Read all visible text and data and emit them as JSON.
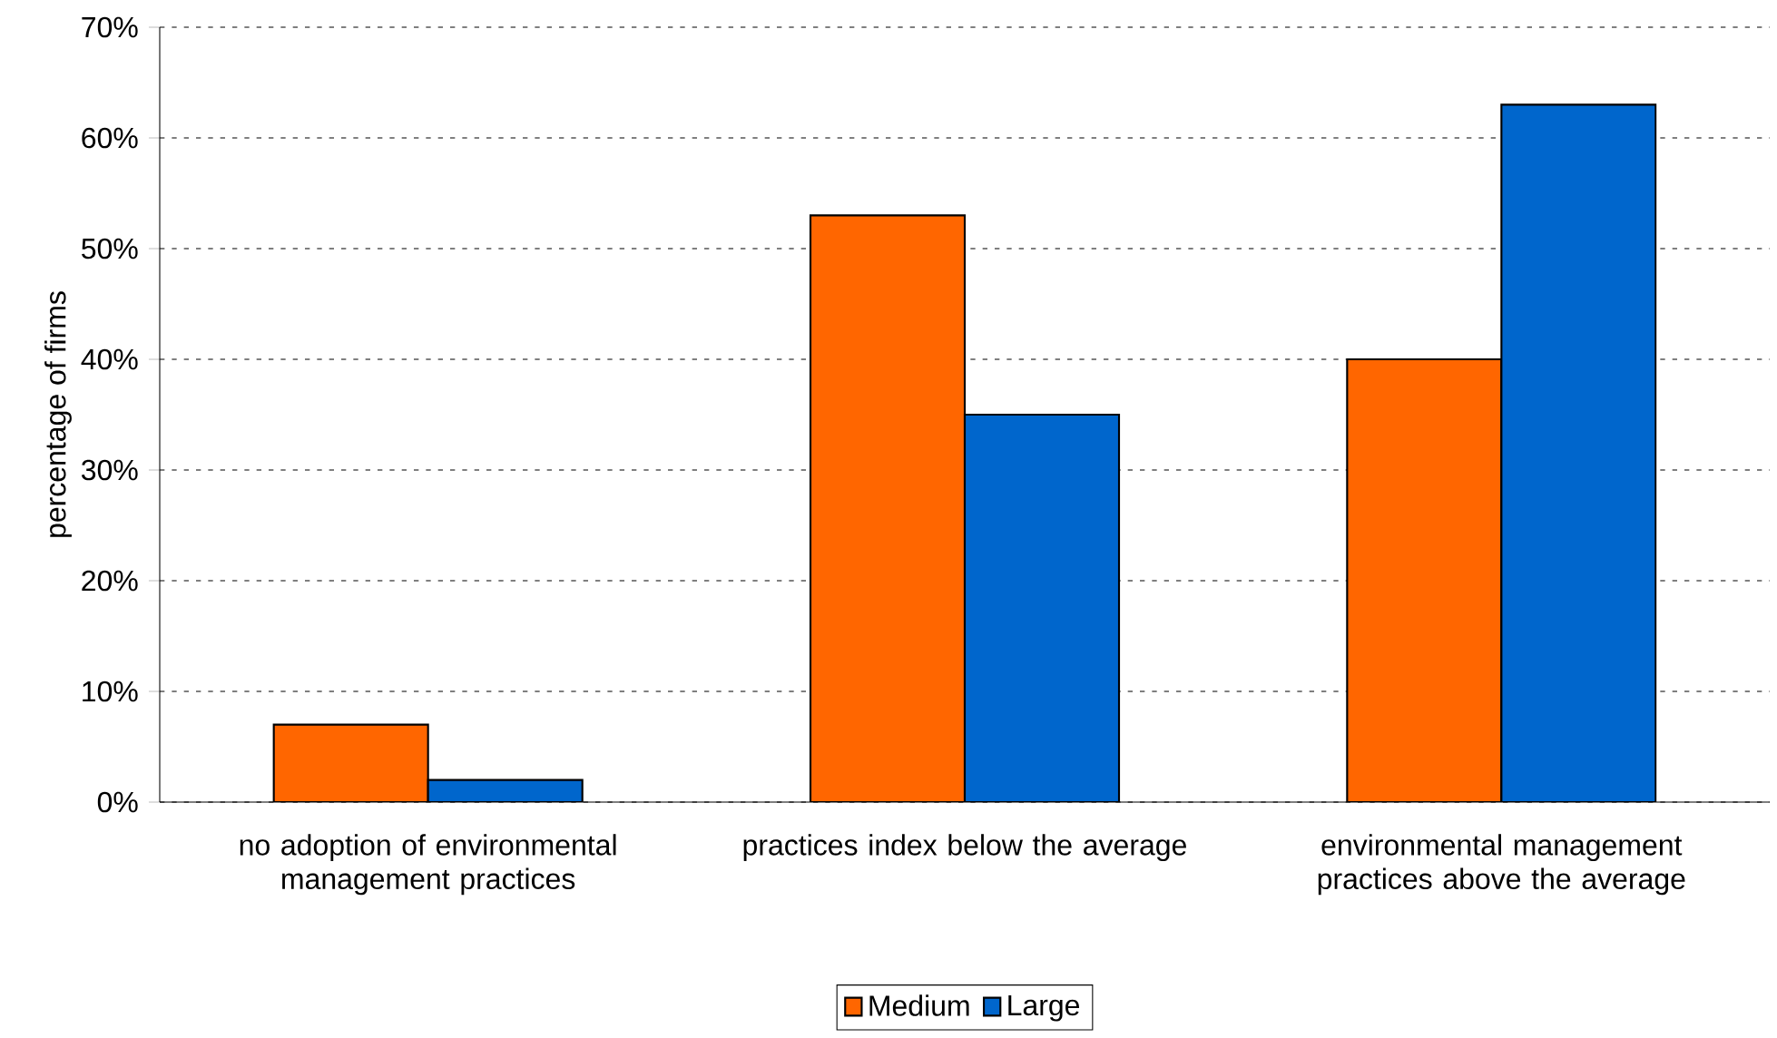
{
  "chart_data": {
    "type": "bar",
    "ylabel": "percentage of firms",
    "categories": [
      "no adoption of environmental management practices",
      "practices  index below the average",
      "environmental management practices above the average"
    ],
    "series": [
      {
        "name": "Medium",
        "color": "#ff6600",
        "values": [
          7,
          53,
          40
        ]
      },
      {
        "name": "Large",
        "color": "#0066cc",
        "values": [
          2,
          35,
          63
        ]
      }
    ],
    "ylim": [
      0,
      70
    ],
    "yticks": [
      {
        "value": 0,
        "label": "0%"
      },
      {
        "value": 10,
        "label": "10%"
      },
      {
        "value": 20,
        "label": "20%"
      },
      {
        "value": 30,
        "label": "30%"
      },
      {
        "value": 40,
        "label": "40%"
      },
      {
        "value": 50,
        "label": "50%"
      },
      {
        "value": 60,
        "label": "60%"
      },
      {
        "value": 70,
        "label": "70%"
      }
    ],
    "grid": "y",
    "legend": "bottom"
  }
}
